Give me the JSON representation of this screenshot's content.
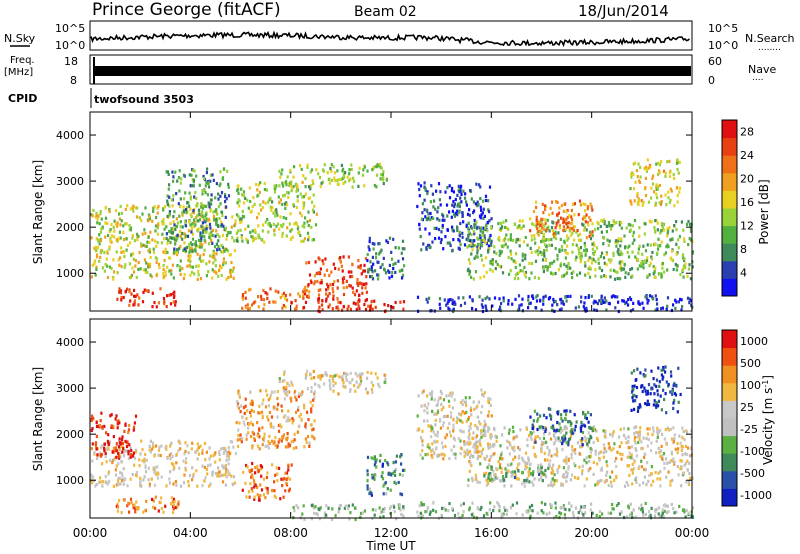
{
  "header": {
    "station": "Prince George (fitACF)",
    "beam": "Beam 02",
    "date": "18/Jun/2014"
  },
  "nsky": {
    "label": "N.Sky",
    "right_label": "N.Search",
    "right_marker": "........",
    "ticks_left": [
      "10^5",
      "10^0"
    ],
    "ticks_right": [
      "10^5",
      "10^0"
    ],
    "legend_color": "#000000"
  },
  "freq": {
    "label_line1": "Freq.",
    "label_line2": "[MHz]",
    "ticks_left": [
      "18",
      "8"
    ],
    "ticks_right": [
      "60",
      "0"
    ],
    "right_label": "Nave",
    "right_marker": "...."
  },
  "cpid": {
    "label": "CPID",
    "value": "twofsound 3503"
  },
  "time_axis": {
    "label": "Time UT",
    "ticks": [
      "00:00",
      "04:00",
      "08:00",
      "12:00",
      "16:00",
      "20:00",
      "00:00"
    ]
  },
  "colors": {
    "power": [
      "#1010f0",
      "#2a3fb0",
      "#3f8a5a",
      "#52b040",
      "#9ad23a",
      "#e8d020",
      "#f0a020",
      "#f07018",
      "#e84010",
      "#e01010"
    ],
    "velocity": [
      "#e01010",
      "#f05010",
      "#f09020",
      "#f0b840",
      "#c8c8c8",
      "#c0c0c0",
      "#5ab040",
      "#3e8a5a",
      "#2a50a8",
      "#1020c0"
    ]
  },
  "chart_data": [
    {
      "type": "heatmap",
      "title": "Power",
      "ylabel": "Slant Range [km]",
      "xlabel": "Time UT",
      "xlim": [
        0,
        24
      ],
      "ylim": [
        180,
        4500
      ],
      "yticks": [
        "1000",
        "2000",
        "3000",
        "4000"
      ],
      "colorbar_label": "Power [dB]",
      "colorbar_ticks": [
        "4",
        "8",
        "12",
        "16",
        "20",
        "24",
        "28"
      ],
      "colorbar_range": [
        0,
        30
      ],
      "echo_bands": [
        {
          "t0": 0.0,
          "t1": 5.8,
          "r0": 900,
          "r1": 2500,
          "level": 0.5
        },
        {
          "t0": 1.0,
          "t1": 3.5,
          "r0": 300,
          "r1": 700,
          "level": 0.9
        },
        {
          "t0": 3.0,
          "t1": 5.5,
          "r0": 1500,
          "r1": 3300,
          "level": 0.3
        },
        {
          "t0": 5.8,
          "t1": 9.0,
          "r0": 1700,
          "r1": 3000,
          "level": 0.45
        },
        {
          "t0": 6.0,
          "t1": 8.5,
          "r0": 250,
          "r1": 700,
          "level": 0.75
        },
        {
          "t0": 7.5,
          "t1": 11.8,
          "r0": 2900,
          "r1": 3400,
          "level": 0.45
        },
        {
          "t0": 8.5,
          "t1": 11.0,
          "r0": 400,
          "r1": 1400,
          "level": 0.85
        },
        {
          "t0": 9.0,
          "t1": 12.5,
          "r0": 180,
          "r1": 450,
          "level": 0.9
        },
        {
          "t0": 11.0,
          "t1": 12.5,
          "r0": 900,
          "r1": 1800,
          "level": 0.2
        },
        {
          "t0": 13.0,
          "t1": 16.0,
          "r0": 1500,
          "r1": 3000,
          "level": 0.15
        },
        {
          "t0": 15.0,
          "t1": 24.0,
          "r0": 900,
          "r1": 2200,
          "level": 0.4
        },
        {
          "t0": 17.5,
          "t1": 20.0,
          "r0": 1800,
          "r1": 2600,
          "level": 0.7
        },
        {
          "t0": 21.5,
          "t1": 23.5,
          "r0": 2500,
          "r1": 3500,
          "level": 0.55
        },
        {
          "t0": 13.0,
          "t1": 24.0,
          "r0": 200,
          "r1": 550,
          "level": 0.1
        }
      ]
    },
    {
      "type": "heatmap",
      "title": "Velocity",
      "ylabel": "Slant Range [km]",
      "xlabel": "Time UT",
      "xlim": [
        0,
        24
      ],
      "ylim": [
        180,
        4500
      ],
      "yticks": [
        "1000",
        "2000",
        "3000",
        "4000"
      ],
      "colorbar_label": "Velocity [m s-1]",
      "colorbar_ticks": [
        "1000",
        "500",
        "100",
        "25",
        "-25",
        "-100",
        "-500",
        "-1000"
      ],
      "colorbar_range": [
        -1000,
        1000
      ],
      "echo_bands": [
        {
          "t0": 0.0,
          "t1": 5.8,
          "r0": 900,
          "r1": 1900,
          "level": 0.42
        },
        {
          "t0": 0.0,
          "t1": 1.8,
          "r0": 1500,
          "r1": 2500,
          "level": 0.05
        },
        {
          "t0": 1.0,
          "t1": 3.5,
          "r0": 300,
          "r1": 700,
          "level": 0.22
        },
        {
          "t0": 5.8,
          "t1": 9.0,
          "r0": 1700,
          "r1": 3000,
          "level": 0.3
        },
        {
          "t0": 6.0,
          "t1": 8.0,
          "r0": 600,
          "r1": 1400,
          "level": 0.2
        },
        {
          "t0": 7.5,
          "t1": 11.8,
          "r0": 2900,
          "r1": 3400,
          "level": 0.45
        },
        {
          "t0": 8.0,
          "t1": 12.5,
          "r0": 180,
          "r1": 500,
          "level": 0.6
        },
        {
          "t0": 11.0,
          "t1": 12.5,
          "r0": 700,
          "r1": 1600,
          "level": 0.75
        },
        {
          "t0": 13.0,
          "t1": 16.0,
          "r0": 1500,
          "r1": 3000,
          "level": 0.45
        },
        {
          "t0": 15.0,
          "t1": 24.0,
          "r0": 900,
          "r1": 2200,
          "level": 0.45
        },
        {
          "t0": 15.5,
          "t1": 18.5,
          "r0": 1000,
          "r1": 1400,
          "level": 0.65
        },
        {
          "t0": 17.5,
          "t1": 20.0,
          "r0": 1800,
          "r1": 2600,
          "level": 0.8
        },
        {
          "t0": 21.5,
          "t1": 23.5,
          "r0": 2500,
          "r1": 3500,
          "level": 0.9
        },
        {
          "t0": 13.0,
          "t1": 24.0,
          "r0": 200,
          "r1": 550,
          "level": 0.62
        }
      ]
    }
  ]
}
